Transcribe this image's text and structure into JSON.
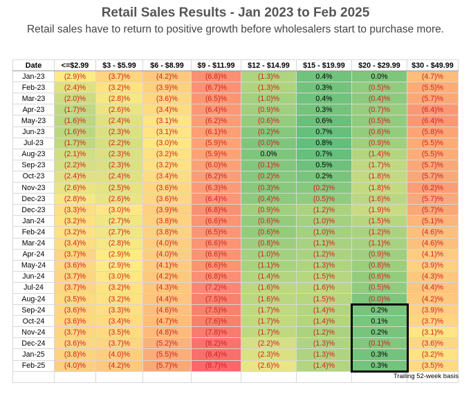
{
  "title": "Retail Sales Results - Jan 2023 to Feb 2025",
  "subtitle": "Retail sales have to return to positive growth before wholesalers start to purchase more.",
  "footnote": "Trailing 52-week basis",
  "table": {
    "headers": [
      "Date",
      "<=$2.99",
      "$3 - $5.99",
      "$6 - $8.99",
      "$9 - $11.99",
      "$12 - $14.99",
      "$15 - $19.99",
      "$20 - $29.99",
      "$30 - $49.99"
    ],
    "rows": [
      [
        "Jan-23",
        "(2.9)%",
        "(3.7)%",
        "(4.2)%",
        "(6.8)%",
        "(1.3)%",
        "0.4%",
        "0.0%",
        "(4.7)%"
      ],
      [
        "Feb-23",
        "(2.4)%",
        "(3.2)%",
        "(3.9)%",
        "(6.7)%",
        "(1.3)%",
        "0.3%",
        "(0.5)%",
        "(5.5)%"
      ],
      [
        "Mar-23",
        "(2.0)%",
        "(2.8)%",
        "(3.6)%",
        "(6.5)%",
        "(1.0)%",
        "0.4%",
        "(0.4)%",
        "(5.7)%"
      ],
      [
        "Apr-23",
        "(1.7)%",
        "(2.6)%",
        "(3.4)%",
        "(6.4)%",
        "(0.9)%",
        "0.3%",
        "(0.7)%",
        "(6.4)%"
      ],
      [
        "May-23",
        "(1.6)%",
        "(2.4)%",
        "(3.1)%",
        "(6.2)%",
        "(0.6)%",
        "0.6%",
        "(0.5)%",
        "(6.4)%"
      ],
      [
        "Jun-23",
        "(1.6)%",
        "(2.3)%",
        "(3.1)%",
        "(6.1)%",
        "(0.2)%",
        "0.7%",
        "(0.6)%",
        "(5.8)%"
      ],
      [
        "Jul-23",
        "(1.7)%",
        "(2.2)%",
        "(3.0)%",
        "(5.9)%",
        "(0.0)%",
        "0.8%",
        "(0.9)%",
        "(5.5)%"
      ],
      [
        "Aug-23",
        "(2.1)%",
        "(2.3)%",
        "(3.2)%",
        "(5.9)%",
        "0.0%",
        "0.7%",
        "(1.4)%",
        "(5.5)%"
      ],
      [
        "Sep-23",
        "(2.2)%",
        "(2.3)%",
        "(3.2)%",
        "(6.0)%",
        "(0.1)%",
        "0.5%",
        "(1.7)%",
        "(5.7)%"
      ],
      [
        "Oct-23",
        "(2.4)%",
        "(2.4)%",
        "(3.4)%",
        "(6.2)%",
        "(0.2)%",
        "0.2%",
        "(1.8)%",
        "(5.7)%"
      ],
      [
        "Nov-23",
        "(2.6)%",
        "(2.5)%",
        "(3.6)%",
        "(6.3)%",
        "(0.3)%",
        "(0.2)%",
        "(1.8)%",
        "(6.2)%"
      ],
      [
        "Dec-23",
        "(2.8)%",
        "(2.6)%",
        "(3.6)%",
        "(6.4)%",
        "(0.4)%",
        "(0.5)%",
        "(1.6)%",
        "(5.7)%"
      ],
      [
        "Dec-23",
        "(3.3)%",
        "(3.0)%",
        "(3.9)%",
        "(6.8)%",
        "(0.9)%",
        "(1.2)%",
        "(1.9)%",
        "(5.7)%"
      ],
      [
        "Jan-24",
        "(3.2)%",
        "(2.7)%",
        "(3.8)%",
        "(6.6)%",
        "(0.6)%",
        "(1.0)%",
        "(1.5)%",
        "(5.1)%"
      ],
      [
        "Feb-24",
        "(3.2)%",
        "(2.7)%",
        "(3.8)%",
        "(6.5)%",
        "(0.6)%",
        "(1.0)%",
        "(1.2)%",
        "(4.6)%"
      ],
      [
        "Mar-24",
        "(3.4)%",
        "(2.8)%",
        "(4.0)%",
        "(6.6)%",
        "(0.8)%",
        "(1.1)%",
        "(1.1)%",
        "(4.6)%"
      ],
      [
        "Apr-24",
        "(3.7)%",
        "(2.9)%",
        "(4.0)%",
        "(6.6)%",
        "(1.0)%",
        "(1.2)%",
        "(0.9)%",
        "(4.1)%"
      ],
      [
        "May-24",
        "(3.6)%",
        "(2.9)%",
        "(4.1)%",
        "(6.6)%",
        "(1.1)%",
        "(1.3)%",
        "(0.8)%",
        "(3.9)%"
      ],
      [
        "Jun-24",
        "(3.7)%",
        "(3.0)%",
        "(4.2)%",
        "(6.8)%",
        "(1.4)%",
        "(1.5)%",
        "(0.6)%",
        "(4.3)%"
      ],
      [
        "Jul-24",
        "(3.7)%",
        "(3.2)%",
        "(4.3)%",
        "(7.2)%",
        "(1.6)%",
        "(1.6)%",
        "(0.5)%",
        "(4.4)%"
      ],
      [
        "Aug-24",
        "(3.5)%",
        "(3.2)%",
        "(4.4)%",
        "(7.5)%",
        "(1.6)%",
        "(1.5)%",
        "(0.0)%",
        "(4.2)%"
      ],
      [
        "Sep-24",
        "(3.6)%",
        "(3.3)%",
        "(4.6)%",
        "(7.5)%",
        "(1.7)%",
        "(1.4)%",
        "0.2%",
        "(3.9)%"
      ],
      [
        "Oct-24",
        "(3.6)%",
        "(3.4)%",
        "(4.7)%",
        "(7.6)%",
        "(1.7)%",
        "(1.4)%",
        "0.1%",
        "(3.7)%"
      ],
      [
        "Nov-24",
        "(3.7)%",
        "(3.5)%",
        "(4.8)%",
        "(7.8)%",
        "(1.7)%",
        "(1.2)%",
        "0.2%",
        "(3.1)%"
      ],
      [
        "Dec-24",
        "(3.6)%",
        "(3.7)%",
        "(5.2)%",
        "(8.2)%",
        "(2.2)%",
        "(1.3)%",
        "(0.1)%",
        "(3.6)%"
      ],
      [
        "Jan-25",
        "(3.8)%",
        "(4.0)%",
        "(5.5)%",
        "(8.4)%",
        "(2.3)%",
        "(1.3)%",
        "0.3%",
        "(3.2)%"
      ],
      [
        "Feb-25",
        "(4.0)%",
        "(4.2)%",
        "(5.7)%",
        "(8.7)%",
        "(2.6)%",
        "(1.4)%",
        "0.3%",
        "(3.5)%"
      ]
    ]
  },
  "colors": {
    "negative_text": "#d21f1f",
    "positive_text": "#000000",
    "scale_high": "#63be7b",
    "scale_mid": "#ffeb84",
    "scale_low": "#f8696b",
    "title_text": "#555555"
  }
}
